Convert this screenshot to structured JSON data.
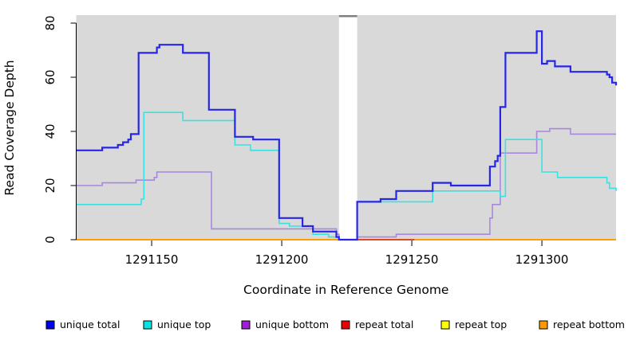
{
  "figure": {
    "background": "#ffffff",
    "plot_background": "#d9d9d9"
  },
  "chart_data": {
    "type": "line",
    "subtype": "step-coverage-plot",
    "title": "",
    "xlabel": "Coordinate in Reference Genome",
    "ylabel": "Read Coverage Depth",
    "xlim": [
      1291121,
      1291328.5
    ],
    "ylim": [
      0,
      83
    ],
    "grid": "off",
    "legend_position": "bottom",
    "gap": {
      "from": 1291222,
      "to": 1291229,
      "note": "white column in plot, no data shown",
      "top_bar_color": "#7f7f7f"
    },
    "x_ticks": [
      {
        "value": 1291150,
        "label": "1291150"
      },
      {
        "value": 1291200,
        "label": "1291200"
      },
      {
        "value": 1291250,
        "label": "1291250"
      },
      {
        "value": 1291300,
        "label": "1291300"
      }
    ],
    "y_ticks": [
      {
        "value": 0,
        "label": "0"
      },
      {
        "value": 20,
        "label": "20"
      },
      {
        "value": 40,
        "label": "40"
      },
      {
        "value": 60,
        "label": "60"
      },
      {
        "value": 80,
        "label": "80"
      }
    ],
    "series": [
      {
        "name": "repeat top",
        "color": "#ffff00",
        "line_width": 1.6,
        "segments": [
          [
            [
              1291121,
              0
            ],
            [
              1291328.5,
              0
            ]
          ]
        ]
      },
      {
        "name": "repeat bottom",
        "color": "#ff9e00",
        "line_width": 2.0,
        "segments": [
          [
            [
              1291121,
              0
            ],
            [
              1291222,
              0
            ]
          ],
          [
            [
              1291229,
              0
            ],
            [
              1291328.5,
              0
            ]
          ]
        ]
      },
      {
        "name": "repeat total",
        "color": "#d92b2b",
        "line_width": 1.4,
        "segments": [
          [
            [
              1291229,
              0
            ],
            [
              1291251,
              0
            ]
          ]
        ]
      },
      {
        "name": "unique bottom",
        "color": "#a888de",
        "line_width": 1.6,
        "segments": [
          [
            [
              1291121,
              20
            ],
            [
              1291131,
              21
            ],
            [
              1291144,
              22
            ],
            [
              1291151,
              23
            ],
            [
              1291152,
              25
            ],
            [
              1291173,
              4
            ],
            [
              1291221,
              2
            ],
            [
              1291222,
              0
            ],
            [
              1291229,
              1
            ],
            [
              1291244,
              2
            ],
            [
              1291280,
              8
            ],
            [
              1291281,
              13
            ],
            [
              1291284,
              32
            ],
            [
              1291298,
              40
            ],
            [
              1291303,
              41
            ],
            [
              1291311,
              39
            ],
            [
              1291328.5,
              39
            ]
          ]
        ]
      },
      {
        "name": "unique top",
        "color": "#35e3e3",
        "line_width": 1.6,
        "segments": [
          [
            [
              1291121,
              13
            ],
            [
              1291146,
              15
            ],
            [
              1291147,
              47
            ],
            [
              1291162,
              44
            ],
            [
              1291182,
              35
            ],
            [
              1291188,
              33
            ],
            [
              1291199,
              6
            ],
            [
              1291203,
              5
            ],
            [
              1291212,
              2
            ],
            [
              1291218,
              1
            ],
            [
              1291222,
              0
            ],
            [
              1291229,
              14
            ],
            [
              1291258,
              18
            ],
            [
              1291284,
              16
            ],
            [
              1291286,
              37
            ],
            [
              1291300,
              25
            ],
            [
              1291306,
              23
            ],
            [
              1291325,
              21
            ],
            [
              1291326,
              19
            ],
            [
              1291328.5,
              18
            ]
          ]
        ]
      },
      {
        "name": "unique total",
        "color": "#2626e8",
        "line_width": 2.2,
        "segments": [
          [
            [
              1291121,
              33
            ],
            [
              1291131,
              34
            ],
            [
              1291137,
              35
            ],
            [
              1291139,
              36
            ],
            [
              1291141,
              37
            ],
            [
              1291142,
              39
            ],
            [
              1291145,
              69
            ],
            [
              1291152,
              71
            ],
            [
              1291153,
              72
            ],
            [
              1291162,
              69
            ],
            [
              1291172,
              48
            ],
            [
              1291182,
              38
            ],
            [
              1291189,
              37
            ],
            [
              1291199,
              8
            ],
            [
              1291208,
              5
            ],
            [
              1291212,
              3
            ],
            [
              1291221,
              1
            ],
            [
              1291222,
              0
            ],
            [
              1291229,
              14
            ],
            [
              1291238,
              15
            ],
            [
              1291244,
              18
            ],
            [
              1291258,
              21
            ],
            [
              1291265,
              20
            ],
            [
              1291280,
              27
            ],
            [
              1291282,
              29
            ],
            [
              1291283,
              31
            ],
            [
              1291284,
              49
            ],
            [
              1291286,
              69
            ],
            [
              1291298,
              77
            ],
            [
              1291300,
              65
            ],
            [
              1291302,
              66
            ],
            [
              1291305,
              64
            ],
            [
              1291311,
              62
            ],
            [
              1291325,
              61
            ],
            [
              1291326,
              60
            ],
            [
              1291327,
              58
            ],
            [
              1291328.5,
              57
            ]
          ]
        ]
      }
    ],
    "legend": [
      {
        "label": "unique total",
        "swatch_color": "#0000ee"
      },
      {
        "label": "unique top",
        "swatch_color": "#00e6e6"
      },
      {
        "label": "unique bottom",
        "swatch_color": "#a21cd6"
      },
      {
        "label": "repeat total",
        "swatch_color": "#ee0000"
      },
      {
        "label": "repeat top",
        "swatch_color": "#ffff00"
      },
      {
        "label": "repeat bottom",
        "swatch_color": "#ff9900"
      }
    ]
  }
}
